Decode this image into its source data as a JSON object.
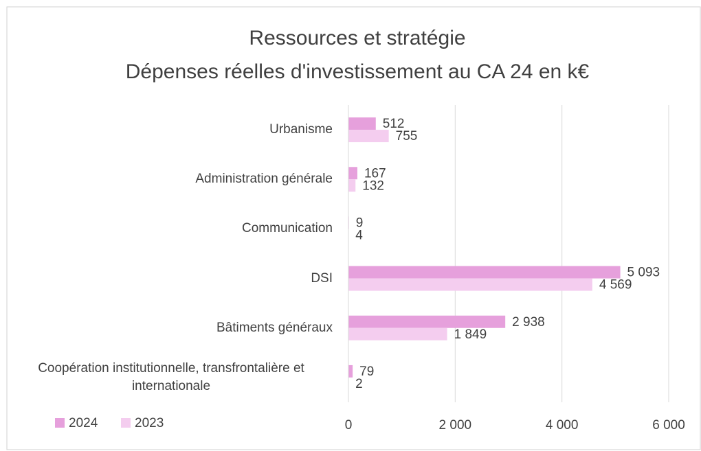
{
  "chart_data": {
    "type": "barh",
    "title": "Ressources et stratégie",
    "subtitle": "Dépenses réelles d'investissement au CA 24 en k€",
    "categories": [
      "Urbanisme",
      "Administration générale",
      "Communication",
      "DSI",
      "Bâtiments généraux",
      "Coopération institutionnelle, transfrontalière et internationale"
    ],
    "series": [
      {
        "name": "2024",
        "color": "#e6a0dc",
        "values": [
          512,
          167,
          9,
          5093,
          2938,
          79
        ],
        "value_labels": [
          "512",
          "167",
          "9",
          "5 093",
          "2 938",
          "79"
        ]
      },
      {
        "name": "2023",
        "color": "#f4cdef",
        "values": [
          755,
          132,
          4,
          4569,
          1849,
          2
        ],
        "value_labels": [
          "755",
          "132",
          "4",
          "4 569",
          "1 849",
          "2"
        ]
      }
    ],
    "xlim": [
      0,
      6000
    ],
    "xticks": [
      0,
      {
        "value": 2000,
        "label": "2 000"
      },
      {
        "value": 4000,
        "label": "4 000"
      },
      {
        "value": 6000,
        "label": "6 000"
      }
    ],
    "grid": true,
    "legend": "bottom-left"
  }
}
